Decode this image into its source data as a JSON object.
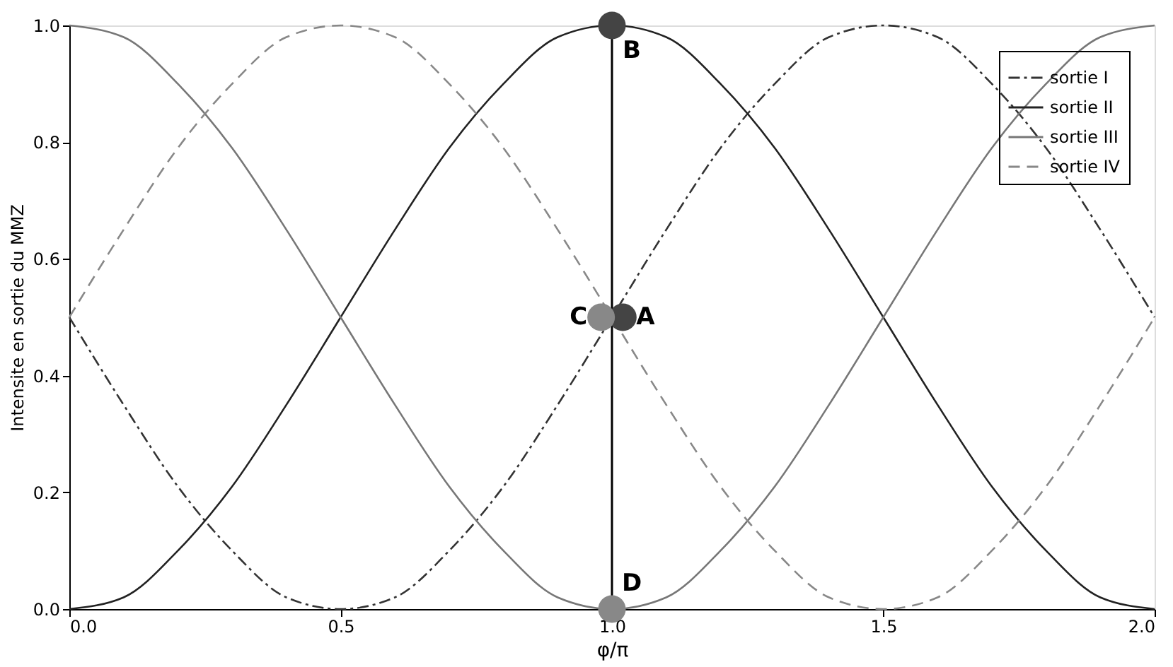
{
  "chart_data": {
    "type": "line",
    "xlabel": "φ/π",
    "ylabel": "Intensite en sortie du MMZ",
    "x": [
      0,
      0.1,
      0.2,
      0.3,
      0.4,
      0.5,
      0.6,
      0.7,
      0.8,
      0.9,
      1.0,
      1.1,
      1.2,
      1.3,
      1.4,
      1.5,
      1.6,
      1.7,
      1.8,
      1.9,
      2.0
    ],
    "series": [
      {
        "name": "sortie I",
        "color": "#333333",
        "line_style": "dashdot",
        "values": [
          0.5,
          0.35,
          0.21,
          0.1,
          0.02,
          0,
          0.02,
          0.1,
          0.21,
          0.35,
          0.5,
          0.65,
          0.79,
          0.9,
          0.98,
          1,
          0.98,
          0.9,
          0.79,
          0.65,
          0.5
        ]
      },
      {
        "name": "sortie II",
        "color": "#222222",
        "line_style": "solid",
        "values": [
          0,
          0.02,
          0.1,
          0.21,
          0.35,
          0.5,
          0.65,
          0.79,
          0.9,
          0.98,
          1,
          0.98,
          0.9,
          0.79,
          0.65,
          0.5,
          0.35,
          0.21,
          0.1,
          0.02,
          0
        ]
      },
      {
        "name": "sortie III",
        "color": "#777777",
        "line_style": "solid",
        "values": [
          1,
          0.98,
          0.9,
          0.79,
          0.65,
          0.5,
          0.35,
          0.21,
          0.1,
          0.02,
          0,
          0.02,
          0.1,
          0.21,
          0.35,
          0.5,
          0.65,
          0.79,
          0.9,
          0.98,
          1
        ]
      },
      {
        "name": "sortie IV",
        "color": "#888888",
        "line_style": "dashed",
        "values": [
          0.5,
          0.65,
          0.79,
          0.9,
          0.98,
          1,
          0.98,
          0.9,
          0.79,
          0.65,
          0.5,
          0.35,
          0.21,
          0.1,
          0.02,
          0,
          0.02,
          0.1,
          0.21,
          0.35,
          0.5
        ]
      },
      {
        "type": "scatter",
        "marker": "circle",
        "x": [
          1.0,
          1.02,
          0.98,
          1.0
        ],
        "values": [
          1.0,
          0.5,
          0.5,
          0.0
        ],
        "colors": [
          "#444444",
          "#444444",
          "#888888",
          "#888888"
        ]
      }
    ],
    "annotations": [
      {
        "text": "B",
        "x": 1.0,
        "y": 1.0
      },
      {
        "text": "A",
        "x": 1.02,
        "y": 0.5
      },
      {
        "text": "C",
        "x": 0.98,
        "y": 0.5
      },
      {
        "text": "D",
        "x": 1.0,
        "y": 0.0
      }
    ],
    "ref_lines": [
      {
        "axis": "x",
        "value": 1.0,
        "color": "#000000"
      }
    ],
    "xlim": [
      0,
      2
    ],
    "ylim": [
      0,
      1
    ],
    "xticks": [
      {
        "value": 0,
        "label": "0.0"
      },
      {
        "value": 0.5,
        "label": "0.5"
      },
      {
        "value": 1,
        "label": "1.0"
      },
      {
        "value": 1.5,
        "label": "1.5"
      },
      {
        "value": 2,
        "label": "2.0"
      }
    ],
    "yticks": [
      {
        "value": 0,
        "label": "0.0"
      },
      {
        "value": 0.2,
        "label": "0.2"
      },
      {
        "value": 0.4,
        "label": "0.4"
      },
      {
        "value": 0.6,
        "label": "0.6"
      },
      {
        "value": 0.8,
        "label": "0.8"
      },
      {
        "value": 1,
        "label": "1.0"
      }
    ],
    "grid": false,
    "legend": "top right",
    "marker": "none"
  }
}
